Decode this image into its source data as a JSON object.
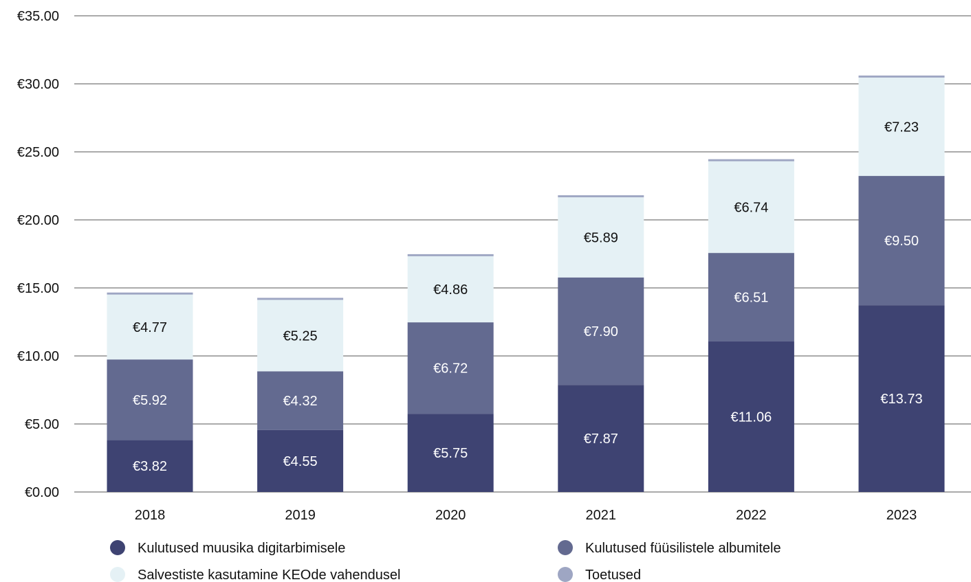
{
  "chart_data": {
    "type": "bar",
    "stacked": true,
    "categories": [
      "2018",
      "2019",
      "2020",
      "2021",
      "2022",
      "2023"
    ],
    "series": [
      {
        "name": "Kulutused muusika digitarbimisele",
        "color": "#3e4372",
        "label_color": "#ffffff",
        "values": [
          3.82,
          4.55,
          5.75,
          7.87,
          11.06,
          13.73
        ],
        "labels": [
          "€3.82",
          "€4.55",
          "€5.75",
          "€7.87",
          "€11.06",
          "€13.73"
        ]
      },
      {
        "name": "Kulutused füüsilistele albumitele",
        "color": "#636a90",
        "label_color": "#ffffff",
        "values": [
          5.92,
          4.32,
          6.72,
          7.9,
          6.51,
          9.5
        ],
        "labels": [
          "€5.92",
          "€4.32",
          "€6.72",
          "€7.90",
          "€6.51",
          "€9.50"
        ]
      },
      {
        "name": "Salvestiste kasutamine KEOde vahendusel",
        "color": "#e5f1f5",
        "label_color": "#111111",
        "values": [
          4.77,
          5.25,
          4.86,
          5.89,
          6.74,
          7.23
        ],
        "labels": [
          "€4.77",
          "€5.25",
          "€4.86",
          "€5.89",
          "€6.74",
          "€7.23"
        ]
      },
      {
        "name": "Toetused",
        "color": "#9ea6c3",
        "label_color": "#111111",
        "values": [
          0.15,
          0.15,
          0.15,
          0.15,
          0.15,
          0.15
        ],
        "labels": []
      }
    ],
    "ylim": [
      0,
      35
    ],
    "yticks": [
      0,
      5,
      10,
      15,
      20,
      25,
      30,
      35
    ],
    "ytick_labels": [
      "€0.00",
      "€5.00",
      "€10.00",
      "€15.00",
      "€20.00",
      "€25.00",
      "€30.00",
      "€35.00"
    ],
    "grid": true,
    "grid_color": "#555555",
    "legend_position": "bottom"
  }
}
